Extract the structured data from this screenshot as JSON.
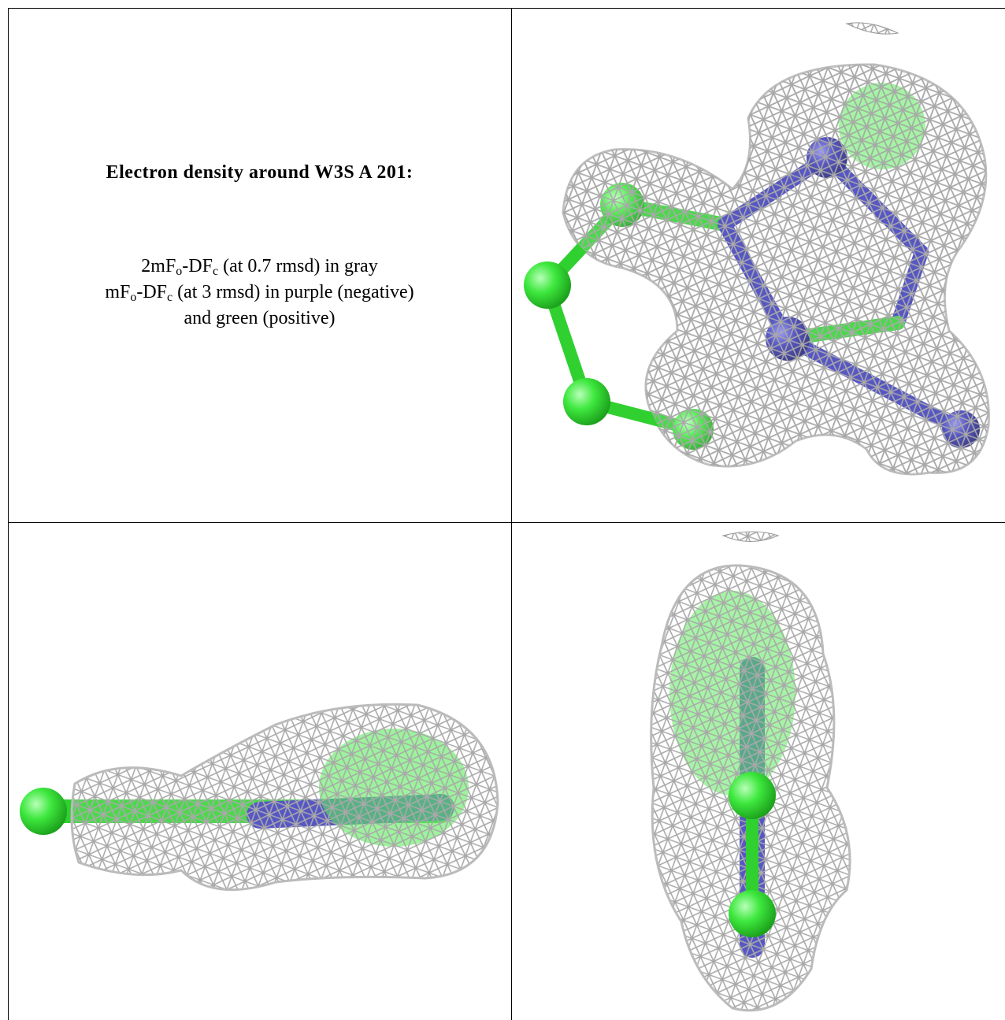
{
  "caption": {
    "title": "Electron density around W3S A 201:",
    "lines": [
      {
        "parts": [
          "2mF",
          "o",
          "-DF",
          "c",
          " (at 0.7 rmsd) in gray"
        ]
      },
      {
        "parts": [
          "mF",
          "o",
          "-DF",
          "c",
          " (at 3 rmsd) in purple (negative)"
        ]
      },
      {
        "parts": [
          "and green (positive)"
        ]
      }
    ]
  }
}
